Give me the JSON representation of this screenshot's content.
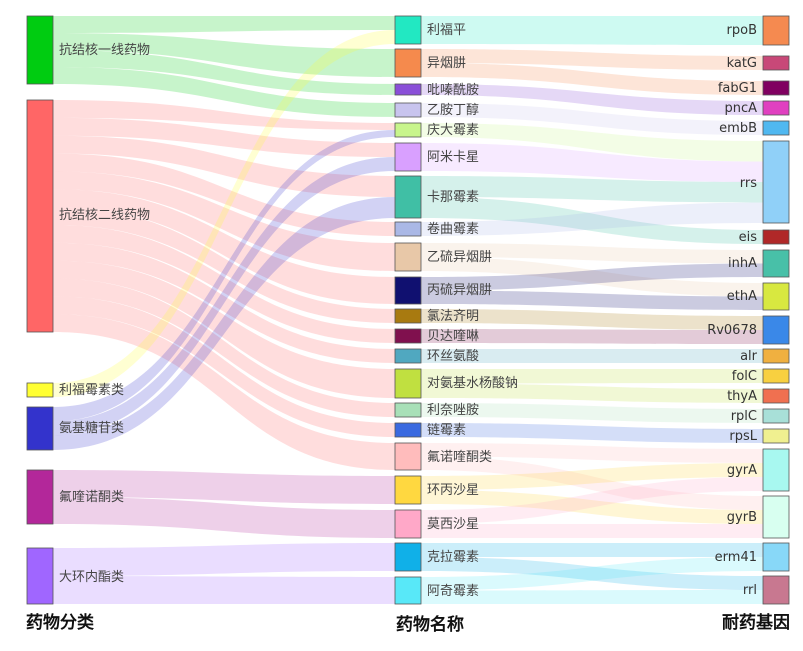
{
  "columns": {
    "left_title": "药物分类",
    "mid_title": "药物名称",
    "right_title": "耐药基因"
  },
  "categories": [
    {
      "id": "c1",
      "label": "抗结核一线药物",
      "color": "#00cc11"
    },
    {
      "id": "c2",
      "label": "抗结核二线药物",
      "color": "#ff6666"
    },
    {
      "id": "c3",
      "label": "利福霉素类",
      "color": "#ffff33"
    },
    {
      "id": "c4",
      "label": "氨基糖苷类",
      "color": "#3333cc"
    },
    {
      "id": "c5",
      "label": "氟喹诺酮类",
      "color": "#b3279a"
    },
    {
      "id": "c6",
      "label": "大环内酯类",
      "color": "#a066ff"
    }
  ],
  "drugs": [
    {
      "id": "d1",
      "label": "利福平",
      "color": "#22e8c2"
    },
    {
      "id": "d2",
      "label": "异烟肼",
      "color": "#f58a4d"
    },
    {
      "id": "d3",
      "label": "吡嗪酰胺",
      "color": "#8a4fd8"
    },
    {
      "id": "d4",
      "label": "乙胺丁醇",
      "color": "#c8c4ee"
    },
    {
      "id": "d5",
      "label": "庆大霉素",
      "color": "#c8f58c"
    },
    {
      "id": "d6",
      "label": "阿米卡星",
      "color": "#d9a0ff"
    },
    {
      "id": "d7",
      "label": "卡那霉素",
      "color": "#40bfa5"
    },
    {
      "id": "d8",
      "label": "卷曲霉素",
      "color": "#aab8e6"
    },
    {
      "id": "d9",
      "label": "乙硫异烟肼",
      "color": "#e8c8a8"
    },
    {
      "id": "d10",
      "label": "丙硫异烟肼",
      "color": "#101070"
    },
    {
      "id": "d11",
      "label": "氯法齐明",
      "color": "#a87a10"
    },
    {
      "id": "d12",
      "label": "贝达喹啉",
      "color": "#80104e"
    },
    {
      "id": "d13",
      "label": "环丝氨酸",
      "color": "#50a8c0"
    },
    {
      "id": "d14",
      "label": "对氨基水杨酸钠",
      "color": "#c0e040"
    },
    {
      "id": "d15",
      "label": "利奈唑胺",
      "color": "#a8e0b8"
    },
    {
      "id": "d16",
      "label": "链霉素",
      "color": "#3a6ae0"
    },
    {
      "id": "d17",
      "label": "氟诺喹酮类",
      "color": "#ffbcbc"
    },
    {
      "id": "d18",
      "label": "环丙沙星",
      "color": "#ffd840"
    },
    {
      "id": "d19",
      "label": "莫西沙星",
      "color": "#ffa8c8"
    },
    {
      "id": "d20",
      "label": "克拉霉素",
      "color": "#10b0e8"
    },
    {
      "id": "d21",
      "label": "阿奇霉素",
      "color": "#58e8f8"
    }
  ],
  "genes": [
    {
      "id": "g1",
      "label": "rpoB",
      "color": "#f58a50"
    },
    {
      "id": "g2",
      "label": "katG",
      "color": "#c84878"
    },
    {
      "id": "g3",
      "label": "fabG1",
      "color": "#800060"
    },
    {
      "id": "g4",
      "label": "pncA",
      "color": "#e040c0"
    },
    {
      "id": "g5",
      "label": "embB",
      "color": "#50b8f0"
    },
    {
      "id": "g6",
      "label": "rrs",
      "color": "#90d0f8"
    },
    {
      "id": "g7",
      "label": "eis",
      "color": "#b02828"
    },
    {
      "id": "g8",
      "label": "inhA",
      "color": "#48c0a8"
    },
    {
      "id": "g9",
      "label": "ethA",
      "color": "#d8e840"
    },
    {
      "id": "g10",
      "label": "Rv0678",
      "color": "#3a88e8"
    },
    {
      "id": "g11",
      "label": "alr",
      "color": "#f0b040"
    },
    {
      "id": "g12",
      "label": "folC",
      "color": "#f8d040"
    },
    {
      "id": "g13",
      "label": "thyA",
      "color": "#f07050"
    },
    {
      "id": "g14",
      "label": "rplC",
      "color": "#a8e0d8"
    },
    {
      "id": "g15",
      "label": "rpsL",
      "color": "#f0f090"
    },
    {
      "id": "g16",
      "label": "gyrA",
      "color": "#a8f8f0"
    },
    {
      "id": "g17",
      "label": "gyrB",
      "color": "#d8fff0"
    },
    {
      "id": "g18",
      "label": "erm41",
      "color": "#88d8f8"
    },
    {
      "id": "g19",
      "label": "rrl",
      "color": "#c87890"
    }
  ],
  "links": [
    {
      "source": "c1",
      "target": "d1"
    },
    {
      "source": "c1",
      "target": "d2"
    },
    {
      "source": "c1",
      "target": "d3"
    },
    {
      "source": "c1",
      "target": "d4"
    },
    {
      "source": "c2",
      "target": "d5"
    },
    {
      "source": "c2",
      "target": "d6"
    },
    {
      "source": "c2",
      "target": "d7"
    },
    {
      "source": "c2",
      "target": "d8"
    },
    {
      "source": "c2",
      "target": "d9"
    },
    {
      "source": "c2",
      "target": "d10"
    },
    {
      "source": "c2",
      "target": "d11"
    },
    {
      "source": "c2",
      "target": "d12"
    },
    {
      "source": "c2",
      "target": "d13"
    },
    {
      "source": "c2",
      "target": "d14"
    },
    {
      "source": "c2",
      "target": "d15"
    },
    {
      "source": "c2",
      "target": "d16"
    },
    {
      "source": "c2",
      "target": "d17"
    },
    {
      "source": "c3",
      "target": "d1"
    },
    {
      "source": "c4",
      "target": "d5"
    },
    {
      "source": "c4",
      "target": "d6"
    },
    {
      "source": "c4",
      "target": "d7"
    },
    {
      "source": "c5",
      "target": "d18"
    },
    {
      "source": "c5",
      "target": "d19"
    },
    {
      "source": "c6",
      "target": "d20"
    },
    {
      "source": "c6",
      "target": "d21"
    },
    {
      "source": "d1",
      "target": "g1"
    },
    {
      "source": "d2",
      "target": "g2"
    },
    {
      "source": "d2",
      "target": "g3"
    },
    {
      "source": "d3",
      "target": "g4"
    },
    {
      "source": "d4",
      "target": "g5"
    },
    {
      "source": "d5",
      "target": "g6"
    },
    {
      "source": "d6",
      "target": "g6"
    },
    {
      "source": "d7",
      "target": "g6"
    },
    {
      "source": "d7",
      "target": "g7"
    },
    {
      "source": "d8",
      "target": "g6"
    },
    {
      "source": "d9",
      "target": "g8"
    },
    {
      "source": "d9",
      "target": "g9"
    },
    {
      "source": "d10",
      "target": "g8"
    },
    {
      "source": "d10",
      "target": "g9"
    },
    {
      "source": "d11",
      "target": "g10"
    },
    {
      "source": "d12",
      "target": "g10"
    },
    {
      "source": "d13",
      "target": "g11"
    },
    {
      "source": "d14",
      "target": "g12"
    },
    {
      "source": "d14",
      "target": "g13"
    },
    {
      "source": "d15",
      "target": "g14"
    },
    {
      "source": "d16",
      "target": "g15"
    },
    {
      "source": "d17",
      "target": "g16"
    },
    {
      "source": "d17",
      "target": "g17"
    },
    {
      "source": "d18",
      "target": "g16"
    },
    {
      "source": "d18",
      "target": "g17"
    },
    {
      "source": "d19",
      "target": "g16"
    },
    {
      "source": "d19",
      "target": "g17"
    },
    {
      "source": "d20",
      "target": "g18"
    },
    {
      "source": "d20",
      "target": "g19"
    },
    {
      "source": "d21",
      "target": "g18"
    },
    {
      "source": "d21",
      "target": "g19"
    }
  ]
}
